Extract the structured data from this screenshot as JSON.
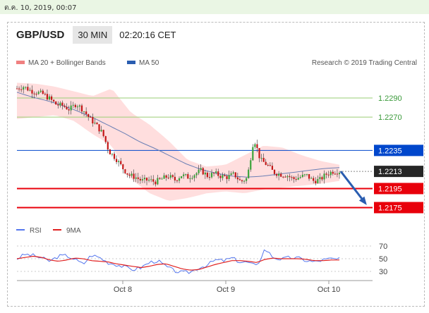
{
  "timestamp": "ต.ค. 10, 2019, 00:07",
  "header": {
    "pair": "GBP/USD",
    "timeframe": "30 MIN",
    "time": "02:20:16 CET"
  },
  "colors": {
    "support": "#e8000b",
    "resistance": "#0047cc",
    "target": "#9acd75",
    "arrow": "#2a5db0",
    "candle_up": "#3aa33a",
    "candle_down": "#c41717",
    "bands": "#ffd3d3",
    "rsi": "#5577ee",
    "rsi_ma": "#e02020"
  },
  "chart_data": [
    {
      "type": "candlestick",
      "title": "GBP/USD",
      "legend": [
        {
          "name": "MA 20 + Bollinger Bands",
          "color": "#f08080"
        },
        {
          "name": "MA 50",
          "color": "#2a5db0"
        }
      ],
      "credit": "Research © 2019 Trading Central",
      "x_ticks": [
        "Oct 8",
        "Oct 9",
        "Oct 10"
      ],
      "ylim": [
        1.2165,
        1.231
      ],
      "levels": [
        {
          "value": 1.229,
          "label": "1.2290",
          "role": "target"
        },
        {
          "value": 1.227,
          "label": "1.2270",
          "role": "target"
        },
        {
          "value": 1.2235,
          "label": "1.2235",
          "role": "pivot"
        },
        {
          "value": 1.2213,
          "label": "1.2213",
          "role": "last-price"
        },
        {
          "value": 1.2195,
          "label": "1.2195",
          "role": "support"
        },
        {
          "value": 1.2175,
          "label": "1.2175",
          "role": "support"
        }
      ],
      "path": [
        1.23,
        1.2302,
        1.2298,
        1.2296,
        1.2294,
        1.2289,
        1.2283,
        1.2282,
        1.2278,
        1.2284,
        1.2278,
        1.2269,
        1.2262,
        1.2253,
        1.2234,
        1.2227,
        1.2217,
        1.2209,
        1.2207,
        1.2203,
        1.2204,
        1.2202,
        1.2205,
        1.2208,
        1.2204,
        1.2209,
        1.2207,
        1.221,
        1.2214,
        1.2208,
        1.2211,
        1.2208,
        1.2207,
        1.221,
        1.2202,
        1.2206,
        1.2248,
        1.2225,
        1.222,
        1.2212,
        1.221,
        1.2209,
        1.2205,
        1.2207,
        1.2209,
        1.2203,
        1.2204,
        1.221,
        1.2213,
        1.2213
      ],
      "ma50": [
        1.2296,
        1.2291,
        1.2287,
        1.2282,
        1.2276,
        1.2269,
        1.2261,
        1.2253,
        1.2244,
        1.2237,
        1.2229,
        1.2221,
        1.2215,
        1.2211,
        1.2208,
        1.2207,
        1.2208,
        1.221,
        1.2212,
        1.2214,
        1.2216,
        1.2217
      ],
      "bb_upper": [
        1.2306,
        1.2305,
        1.2302,
        1.2297,
        1.2292,
        1.23,
        1.2275,
        1.2262,
        1.2245,
        1.2225,
        1.2218,
        1.222,
        1.223,
        1.224,
        1.2238,
        1.223,
        1.2224,
        1.222
      ],
      "bb_lower": [
        1.2268,
        1.227,
        1.2272,
        1.2266,
        1.2252,
        1.224,
        1.2205,
        1.219,
        1.2182,
        1.2185,
        1.219,
        1.2192,
        1.219,
        1.2194,
        1.2196,
        1.2198,
        1.22,
        1.2203
      ],
      "projection": {
        "from": 1.2213,
        "to": 1.2175
      }
    },
    {
      "type": "line",
      "legend": [
        {
          "name": "RSI",
          "color": "#5577ee"
        },
        {
          "name": "9MA",
          "color": "#e02020"
        }
      ],
      "ylim": [
        20,
        80
      ],
      "y_ticks": [
        70,
        50,
        30
      ],
      "rsi": [
        50,
        57,
        55,
        51,
        46,
        54,
        55,
        49,
        41,
        56,
        52,
        44,
        41,
        37,
        33,
        36,
        44,
        47,
        38,
        31,
        28,
        29,
        36,
        40,
        48,
        47,
        51,
        45,
        44,
        38,
        66,
        52,
        49,
        52,
        51,
        47,
        45,
        48,
        50,
        49
      ],
      "rsi_ma": [
        50,
        52,
        54,
        52,
        48,
        46,
        48,
        51,
        50,
        47,
        46,
        45,
        42,
        40,
        38,
        36,
        38,
        41,
        42,
        38,
        34,
        32,
        33,
        37,
        41,
        44,
        47,
        47,
        46,
        44,
        49,
        51,
        50,
        50,
        50,
        49,
        47,
        47,
        48,
        48
      ]
    }
  ]
}
